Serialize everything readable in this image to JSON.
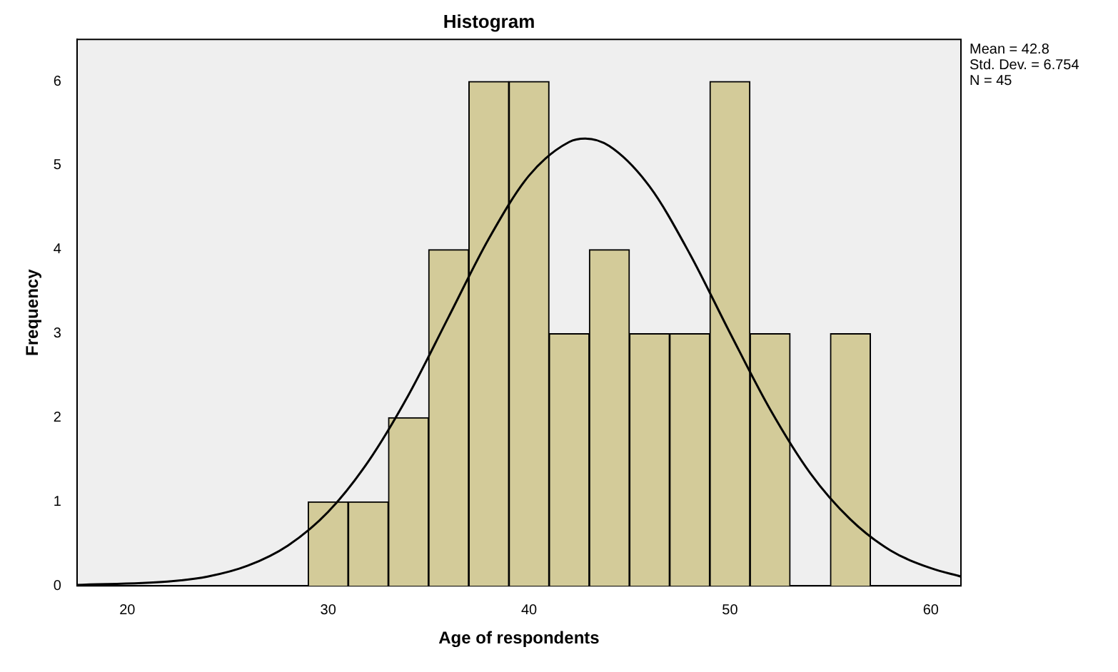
{
  "chart_data": {
    "type": "histogram",
    "title": "Histogram",
    "xlabel": "Age of respondents",
    "ylabel": "Frequency",
    "bins": [
      29,
      31,
      33,
      35,
      37,
      39,
      41,
      43,
      45,
      47,
      49,
      51,
      53,
      55,
      57
    ],
    "values": [
      1,
      1,
      2,
      4,
      6,
      6,
      3,
      4,
      3,
      3,
      6,
      3,
      0,
      3
    ],
    "color": "#d3cb99",
    "series": [
      {
        "type": "line",
        "color": "#000000",
        "x": [
          17.5,
          22,
          24,
          26,
          28,
          30,
          32,
          34,
          36,
          38,
          40,
          42,
          42.8,
          44,
          46,
          48,
          50,
          52,
          54,
          56,
          58,
          60,
          61.5
        ],
        "values": [
          0.01,
          0.05,
          0.11,
          0.24,
          0.48,
          0.88,
          1.48,
          2.27,
          3.2,
          4.13,
          4.88,
          5.28,
          5.32,
          5.23,
          4.75,
          3.95,
          3.01,
          2.1,
          1.34,
          0.79,
          0.42,
          0.21,
          0.11
        ]
      }
    ],
    "xlim": [
      17.5,
      61.5
    ],
    "xticks": [
      20,
      30,
      40,
      50,
      60
    ],
    "ylim": [
      0,
      6.5
    ],
    "yticks": [
      0,
      1,
      2,
      3,
      4,
      5,
      6
    ],
    "grid": false,
    "legend": false,
    "annotations": [
      "Mean = 42.8",
      "Std. Dev. = 6.754",
      "N = 45"
    ]
  }
}
